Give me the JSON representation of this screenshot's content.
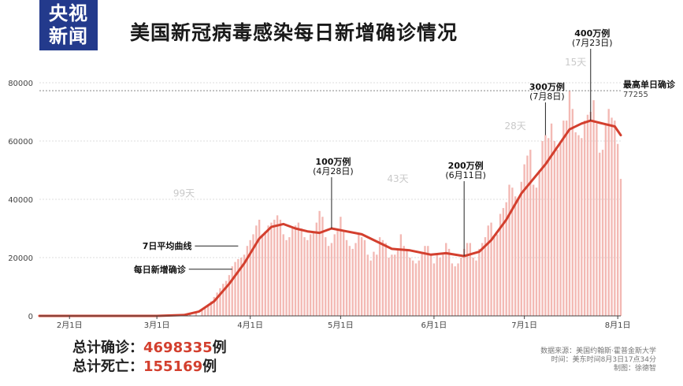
{
  "logo": {
    "line1": "央视",
    "line2": "新闻"
  },
  "title": "美国新冠病毒感染每日新增确诊情况",
  "chart_data": {
    "type": "bar",
    "title": "美国新冠病毒感染每日新增确诊情况",
    "xlabel": "",
    "ylabel": "",
    "x_ticks": [
      {
        "date": "2020-02-01",
        "label": "2月1日"
      },
      {
        "date": "2020-03-01",
        "label": "3月1日"
      },
      {
        "date": "2020-04-01",
        "label": "4月1日"
      },
      {
        "date": "2020-05-01",
        "label": "5月1日"
      },
      {
        "date": "2020-06-01",
        "label": "6月1日"
      },
      {
        "date": "2020-07-01",
        "label": "7月1日"
      },
      {
        "date": "2020-08-01",
        "label": "8月1日"
      }
    ],
    "y_ticks": [
      0,
      20000,
      40000,
      60000,
      80000
    ],
    "ylim": [
      0,
      80000
    ],
    "xlim": [
      "2020-01-22",
      "2020-08-02"
    ],
    "grid": "dashed-horizontal",
    "bar_color": "#f3b9b4",
    "line_color": "#d33f2e",
    "reference_line": {
      "value": 77255,
      "label": "最高单日确诊",
      "value_label": "77255"
    },
    "series": [
      {
        "name": "每日新增确诊",
        "kind": "bar",
        "points": [
          [
            "2020-03-10",
            300
          ],
          [
            "2020-03-12",
            600
          ],
          [
            "2020-03-14",
            1000
          ],
          [
            "2020-03-16",
            1800
          ],
          [
            "2020-03-17",
            2500
          ],
          [
            "2020-03-18",
            3500
          ],
          [
            "2020-03-19",
            5000
          ],
          [
            "2020-03-20",
            6500
          ],
          [
            "2020-03-21",
            8000
          ],
          [
            "2020-03-22",
            9500
          ],
          [
            "2020-03-23",
            11000
          ],
          [
            "2020-03-24",
            12000
          ],
          [
            "2020-03-25",
            14000
          ],
          [
            "2020-03-26",
            17000
          ],
          [
            "2020-03-27",
            18500
          ],
          [
            "2020-03-28",
            19500
          ],
          [
            "2020-03-29",
            20000
          ],
          [
            "2020-03-30",
            21000
          ],
          [
            "2020-03-31",
            24000
          ],
          [
            "2020-04-01",
            26000
          ],
          [
            "2020-04-02",
            28000
          ],
          [
            "2020-04-03",
            31000
          ],
          [
            "2020-04-04",
            33000
          ],
          [
            "2020-04-05",
            28000
          ],
          [
            "2020-04-06",
            29000
          ],
          [
            "2020-04-07",
            31000
          ],
          [
            "2020-04-08",
            32000
          ],
          [
            "2020-04-09",
            33000
          ],
          [
            "2020-04-10",
            34500
          ],
          [
            "2020-04-11",
            33000
          ],
          [
            "2020-04-12",
            28000
          ],
          [
            "2020-04-13",
            26000
          ],
          [
            "2020-04-14",
            27000
          ],
          [
            "2020-04-15",
            30000
          ],
          [
            "2020-04-16",
            31000
          ],
          [
            "2020-04-17",
            32000
          ],
          [
            "2020-04-18",
            30000
          ],
          [
            "2020-04-19",
            27000
          ],
          [
            "2020-04-20",
            26000
          ],
          [
            "2020-04-21",
            28000
          ],
          [
            "2020-04-22",
            29000
          ],
          [
            "2020-04-23",
            32000
          ],
          [
            "2020-04-24",
            36000
          ],
          [
            "2020-04-25",
            34000
          ],
          [
            "2020-04-26",
            27000
          ],
          [
            "2020-04-27",
            24000
          ],
          [
            "2020-04-28",
            25000
          ],
          [
            "2020-04-29",
            28000
          ],
          [
            "2020-04-30",
            30000
          ],
          [
            "2020-05-01",
            34000
          ],
          [
            "2020-05-02",
            29000
          ],
          [
            "2020-05-03",
            26000
          ],
          [
            "2020-05-04",
            24000
          ],
          [
            "2020-05-05",
            23000
          ],
          [
            "2020-05-06",
            25000
          ],
          [
            "2020-05-07",
            28000
          ],
          [
            "2020-05-08",
            27000
          ],
          [
            "2020-05-09",
            26000
          ],
          [
            "2020-05-10",
            21000
          ],
          [
            "2020-05-11",
            19000
          ],
          [
            "2020-05-12",
            22000
          ],
          [
            "2020-05-13",
            21000
          ],
          [
            "2020-05-14",
            27000
          ],
          [
            "2020-05-15",
            26000
          ],
          [
            "2020-05-16",
            25000
          ],
          [
            "2020-05-17",
            20000
          ],
          [
            "2020-05-18",
            21000
          ],
          [
            "2020-05-19",
            21000
          ],
          [
            "2020-05-20",
            23000
          ],
          [
            "2020-05-21",
            28000
          ],
          [
            "2020-05-22",
            24000
          ],
          [
            "2020-05-23",
            23000
          ],
          [
            "2020-05-24",
            20000
          ],
          [
            "2020-05-25",
            19000
          ],
          [
            "2020-05-26",
            18000
          ],
          [
            "2020-05-27",
            19000
          ],
          [
            "2020-05-28",
            22000
          ],
          [
            "2020-05-29",
            24000
          ],
          [
            "2020-05-30",
            24000
          ],
          [
            "2020-05-31",
            21000
          ],
          [
            "2020-06-01",
            18000
          ],
          [
            "2020-06-02",
            21000
          ],
          [
            "2020-06-03",
            20000
          ],
          [
            "2020-06-04",
            21000
          ],
          [
            "2020-06-05",
            25000
          ],
          [
            "2020-06-06",
            23000
          ],
          [
            "2020-06-07",
            18000
          ],
          [
            "2020-06-08",
            17000
          ],
          [
            "2020-06-09",
            18000
          ],
          [
            "2020-06-10",
            20000
          ],
          [
            "2020-06-11",
            23000
          ],
          [
            "2020-06-12",
            25000
          ],
          [
            "2020-06-13",
            25000
          ],
          [
            "2020-06-14",
            20000
          ],
          [
            "2020-06-15",
            19000
          ],
          [
            "2020-06-16",
            23000
          ],
          [
            "2020-06-17",
            25000
          ],
          [
            "2020-06-18",
            27000
          ],
          [
            "2020-06-19",
            31000
          ],
          [
            "2020-06-20",
            32000
          ],
          [
            "2020-06-21",
            27000
          ],
          [
            "2020-06-22",
            28000
          ],
          [
            "2020-06-23",
            35000
          ],
          [
            "2020-06-24",
            37000
          ],
          [
            "2020-06-25",
            39000
          ],
          [
            "2020-06-26",
            45000
          ],
          [
            "2020-06-27",
            44000
          ],
          [
            "2020-06-28",
            41000
          ],
          [
            "2020-06-29",
            40000
          ],
          [
            "2020-06-30",
            46000
          ],
          [
            "2020-07-01",
            52000
          ],
          [
            "2020-07-02",
            55000
          ],
          [
            "2020-07-03",
            57000
          ],
          [
            "2020-07-04",
            45000
          ],
          [
            "2020-07-05",
            44000
          ],
          [
            "2020-07-06",
            50000
          ],
          [
            "2020-07-07",
            60000
          ],
          [
            "2020-07-08",
            62000
          ],
          [
            "2020-07-09",
            61000
          ],
          [
            "2020-07-10",
            66000
          ],
          [
            "2020-07-11",
            60000
          ],
          [
            "2020-07-12",
            57000
          ],
          [
            "2020-07-13",
            59000
          ],
          [
            "2020-07-14",
            67000
          ],
          [
            "2020-07-15",
            67000
          ],
          [
            "2020-07-16",
            77255
          ],
          [
            "2020-07-17",
            71000
          ],
          [
            "2020-07-18",
            63000
          ],
          [
            "2020-07-19",
            62000
          ],
          [
            "2020-07-20",
            61000
          ],
          [
            "2020-07-21",
            67000
          ],
          [
            "2020-07-22",
            69000
          ],
          [
            "2020-07-23",
            70000
          ],
          [
            "2020-07-24",
            74000
          ],
          [
            "2020-07-25",
            66000
          ],
          [
            "2020-07-26",
            56000
          ],
          [
            "2020-07-27",
            57000
          ],
          [
            "2020-07-28",
            66000
          ],
          [
            "2020-07-29",
            71000
          ],
          [
            "2020-07-30",
            68000
          ],
          [
            "2020-07-31",
            67000
          ],
          [
            "2020-08-01",
            59000
          ],
          [
            "2020-08-02",
            47000
          ]
        ]
      },
      {
        "name": "7日平均曲线",
        "kind": "line",
        "points": [
          [
            "2020-01-22",
            0
          ],
          [
            "2020-03-01",
            0
          ],
          [
            "2020-03-10",
            300
          ],
          [
            "2020-03-15",
            1500
          ],
          [
            "2020-03-20",
            5000
          ],
          [
            "2020-03-25",
            11000
          ],
          [
            "2020-03-30",
            18000
          ],
          [
            "2020-04-04",
            26500
          ],
          [
            "2020-04-08",
            30500
          ],
          [
            "2020-04-12",
            31500
          ],
          [
            "2020-04-16",
            30000
          ],
          [
            "2020-04-20",
            29000
          ],
          [
            "2020-04-24",
            28500
          ],
          [
            "2020-04-28",
            30000
          ],
          [
            "2020-05-03",
            29000
          ],
          [
            "2020-05-08",
            28000
          ],
          [
            "2020-05-13",
            25500
          ],
          [
            "2020-05-18",
            23000
          ],
          [
            "2020-05-24",
            22500
          ],
          [
            "2020-05-31",
            21000
          ],
          [
            "2020-06-05",
            21500
          ],
          [
            "2020-06-11",
            20500
          ],
          [
            "2020-06-16",
            22000
          ],
          [
            "2020-06-20",
            26000
          ],
          [
            "2020-06-25",
            33000
          ],
          [
            "2020-06-30",
            42000
          ],
          [
            "2020-07-04",
            47000
          ],
          [
            "2020-07-08",
            52000
          ],
          [
            "2020-07-12",
            58000
          ],
          [
            "2020-07-16",
            64000
          ],
          [
            "2020-07-20",
            66000
          ],
          [
            "2020-07-23",
            67000
          ],
          [
            "2020-07-27",
            66000
          ],
          [
            "2020-07-31",
            65000
          ],
          [
            "2020-08-02",
            62000
          ]
        ]
      }
    ],
    "annotations": [
      {
        "date": "2020-04-28",
        "value": 30000,
        "label": "100万例",
        "sub": "(4月28日)"
      },
      {
        "date": "2020-06-11",
        "value": 20500,
        "label": "200万例",
        "sub": "(6月11日)"
      },
      {
        "date": "2020-07-08",
        "value": 62000,
        "label": "300万例",
        "sub": "(7月8日)"
      },
      {
        "date": "2020-07-23",
        "value": 67000,
        "label": "400万例",
        "sub": "(7月23日)"
      }
    ],
    "interval_labels": [
      {
        "date": "2020-03-10",
        "value": 41000,
        "label": "99天"
      },
      {
        "date": "2020-05-20",
        "value": 46000,
        "label": "43天"
      },
      {
        "date": "2020-06-28",
        "value": 64000,
        "label": "28天"
      },
      {
        "date": "2020-07-18",
        "value": 86000,
        "label": "15天"
      }
    ],
    "legend": [
      {
        "label": "7日平均曲线",
        "date": "2020-03-28",
        "value": 24000
      },
      {
        "label": "每日新增确诊",
        "date": "2020-03-26",
        "value": 16000
      }
    ]
  },
  "totals": {
    "confirmed_label": "总计确诊：",
    "confirmed_value": "4698335",
    "confirmed_unit": "例",
    "deaths_label": "总计死亡：",
    "deaths_value": "155169",
    "deaths_unit": "例"
  },
  "source": {
    "line1": "数据来源：美国约翰斯·霍普金斯大学",
    "line2": "时间：美东时间8月3日17点34分",
    "line3": "制图：徐德智"
  }
}
